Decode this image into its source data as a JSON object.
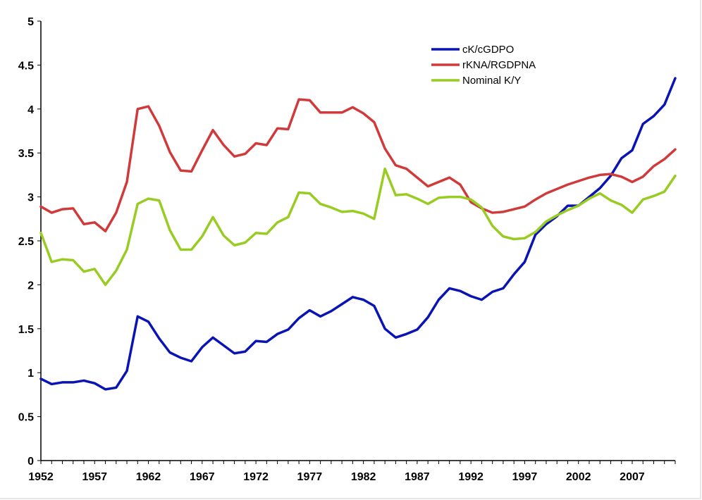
{
  "chart_data": {
    "type": "line",
    "title": "",
    "xlabel": "",
    "ylabel": "",
    "xlim": [
      1952,
      2011
    ],
    "ylim": [
      0,
      5
    ],
    "x_ticks": [
      1952,
      1957,
      1962,
      1967,
      1972,
      1977,
      1982,
      1987,
      1992,
      1997,
      2002,
      2007
    ],
    "y_ticks": [
      0,
      0.5,
      1,
      1.5,
      2,
      2.5,
      3,
      3.5,
      4,
      4.5,
      5
    ],
    "grid": false,
    "legend_position": "top-right",
    "x": [
      1952,
      1953,
      1954,
      1955,
      1956,
      1957,
      1958,
      1959,
      1960,
      1961,
      1962,
      1963,
      1964,
      1965,
      1966,
      1967,
      1968,
      1969,
      1970,
      1971,
      1972,
      1973,
      1974,
      1975,
      1976,
      1977,
      1978,
      1979,
      1980,
      1981,
      1982,
      1983,
      1984,
      1985,
      1986,
      1987,
      1988,
      1989,
      1990,
      1991,
      1992,
      1993,
      1994,
      1995,
      1996,
      1997,
      1998,
      1999,
      2000,
      2001,
      2002,
      2003,
      2004,
      2005,
      2006,
      2007,
      2008,
      2009,
      2010,
      2011
    ],
    "series": [
      {
        "name": "cK/cGDPO",
        "color": "#0a14b4",
        "values": [
          0.93,
          0.87,
          0.89,
          0.89,
          0.91,
          0.88,
          0.81,
          0.83,
          1.02,
          1.64,
          1.58,
          1.39,
          1.23,
          1.17,
          1.13,
          1.29,
          1.4,
          1.31,
          1.22,
          1.24,
          1.36,
          1.35,
          1.44,
          1.49,
          1.62,
          1.71,
          1.64,
          1.7,
          1.78,
          1.86,
          1.83,
          1.76,
          1.5,
          1.4,
          1.44,
          1.49,
          1.63,
          1.83,
          1.96,
          1.93,
          1.87,
          1.83,
          1.92,
          1.96,
          2.12,
          2.26,
          2.57,
          2.69,
          2.78,
          2.9,
          2.9,
          3.0,
          3.1,
          3.24,
          3.44,
          3.53,
          3.83,
          3.92,
          4.05,
          4.35
        ]
      },
      {
        "name": "rKNA/RGDPNA",
        "color": "#d03a3a",
        "values": [
          2.89,
          2.82,
          2.86,
          2.87,
          2.69,
          2.71,
          2.61,
          2.82,
          3.17,
          4.0,
          4.03,
          3.81,
          3.51,
          3.3,
          3.29,
          3.53,
          3.76,
          3.59,
          3.46,
          3.49,
          3.61,
          3.59,
          3.78,
          3.77,
          4.11,
          4.1,
          3.96,
          3.96,
          3.96,
          4.02,
          3.95,
          3.85,
          3.55,
          3.36,
          3.32,
          3.22,
          3.12,
          3.17,
          3.22,
          3.14,
          2.94,
          2.87,
          2.82,
          2.83,
          2.86,
          2.89,
          2.97,
          3.04,
          3.09,
          3.14,
          3.18,
          3.22,
          3.25,
          3.26,
          3.23,
          3.17,
          3.23,
          3.35,
          3.43,
          3.54
        ]
      },
      {
        "name": "Nominal K/Y",
        "color": "#99cc22",
        "values": [
          2.59,
          2.26,
          2.29,
          2.28,
          2.15,
          2.18,
          2.0,
          2.16,
          2.4,
          2.92,
          2.98,
          2.96,
          2.62,
          2.4,
          2.4,
          2.55,
          2.77,
          2.56,
          2.45,
          2.48,
          2.59,
          2.58,
          2.71,
          2.77,
          3.05,
          3.04,
          2.92,
          2.88,
          2.83,
          2.84,
          2.81,
          2.75,
          3.32,
          3.02,
          3.03,
          2.98,
          2.92,
          2.99,
          3.0,
          3.0,
          2.97,
          2.88,
          2.67,
          2.55,
          2.52,
          2.53,
          2.6,
          2.72,
          2.79,
          2.85,
          2.9,
          2.98,
          3.04,
          2.96,
          2.91,
          2.82,
          2.97,
          3.01,
          3.06,
          3.24
        ]
      }
    ]
  }
}
